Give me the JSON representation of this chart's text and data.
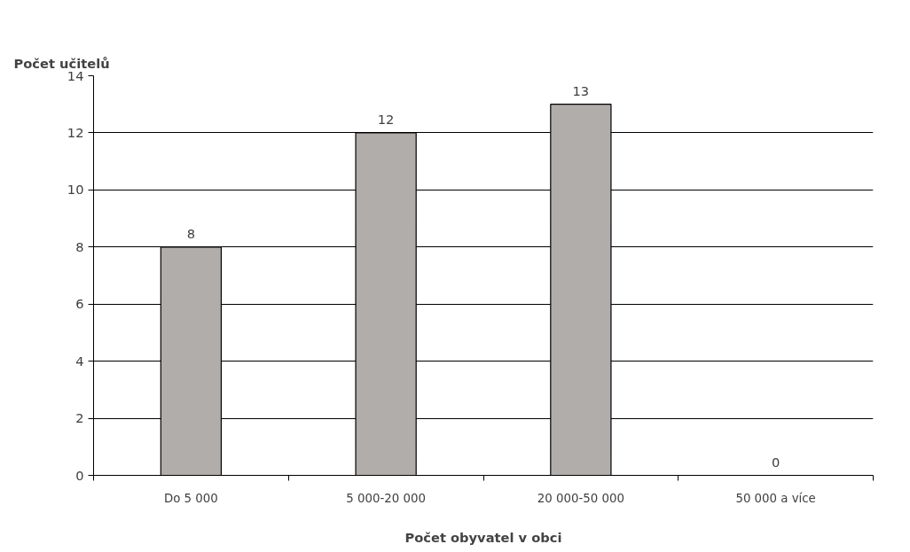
{
  "chart_data": {
    "type": "bar",
    "xlabel": "Počet obyvatel v obci",
    "ylabel": "Počet učitelů",
    "categories": [
      "Do 5 000",
      "5 000-20 000",
      "20 000-50 000",
      "50 000 a více"
    ],
    "values": [
      8,
      12,
      13,
      0
    ],
    "color": "#b0adab",
    "ylim": [
      0,
      14
    ],
    "yticks": [
      0,
      2,
      4,
      6,
      8,
      10,
      12,
      14
    ],
    "grid": "y",
    "data_labels": true
  }
}
